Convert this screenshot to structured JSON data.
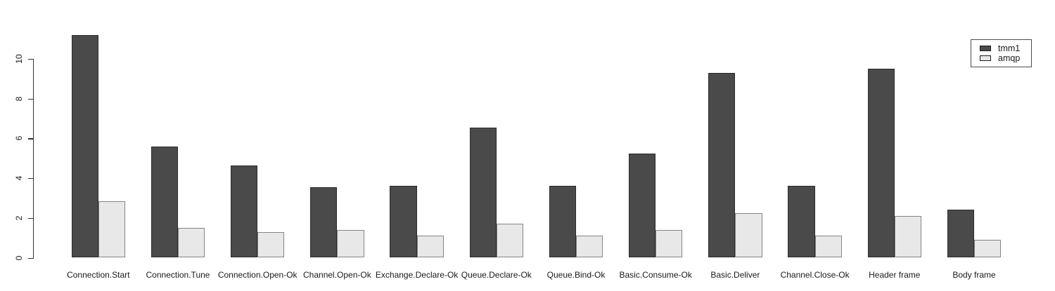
{
  "chart": {
    "background": "#ffffff",
    "axis_color": "#333333",
    "text_color": "#1a1a1a"
  },
  "chart_data": {
    "type": "bar",
    "title": "",
    "xlabel": "",
    "ylabel": "",
    "categories": [
      "Connection.Start",
      "Connection.Tune",
      "Connection.Open-Ok",
      "Channel.Open-Ok",
      "Exchange.Declare-Ok",
      "Queue.Declare-Ok",
      "Queue.Bind-Ok",
      "Basic.Consume-Ok",
      "Basic.Deliver",
      "Channel.Close-Ok",
      "Header frame",
      "Body frame"
    ],
    "series": [
      {
        "name": "tmm1",
        "fill": "#4a4a4a",
        "border": "#2b2b2b",
        "values": [
          11.2,
          5.6,
          4.65,
          3.55,
          3.6,
          6.55,
          3.6,
          5.25,
          9.3,
          3.6,
          9.5,
          2.4
        ]
      },
      {
        "name": "amqp",
        "fill": "#e8e8e8",
        "border": "#848484",
        "values": [
          2.85,
          1.5,
          1.3,
          1.4,
          1.1,
          1.7,
          1.1,
          1.4,
          2.25,
          1.1,
          2.1,
          0.9
        ]
      }
    ],
    "ylim": [
      0,
      11.2
    ],
    "yticks": [
      0,
      2,
      4,
      6,
      8,
      10
    ],
    "grid": false,
    "legend_position": "top-right"
  }
}
